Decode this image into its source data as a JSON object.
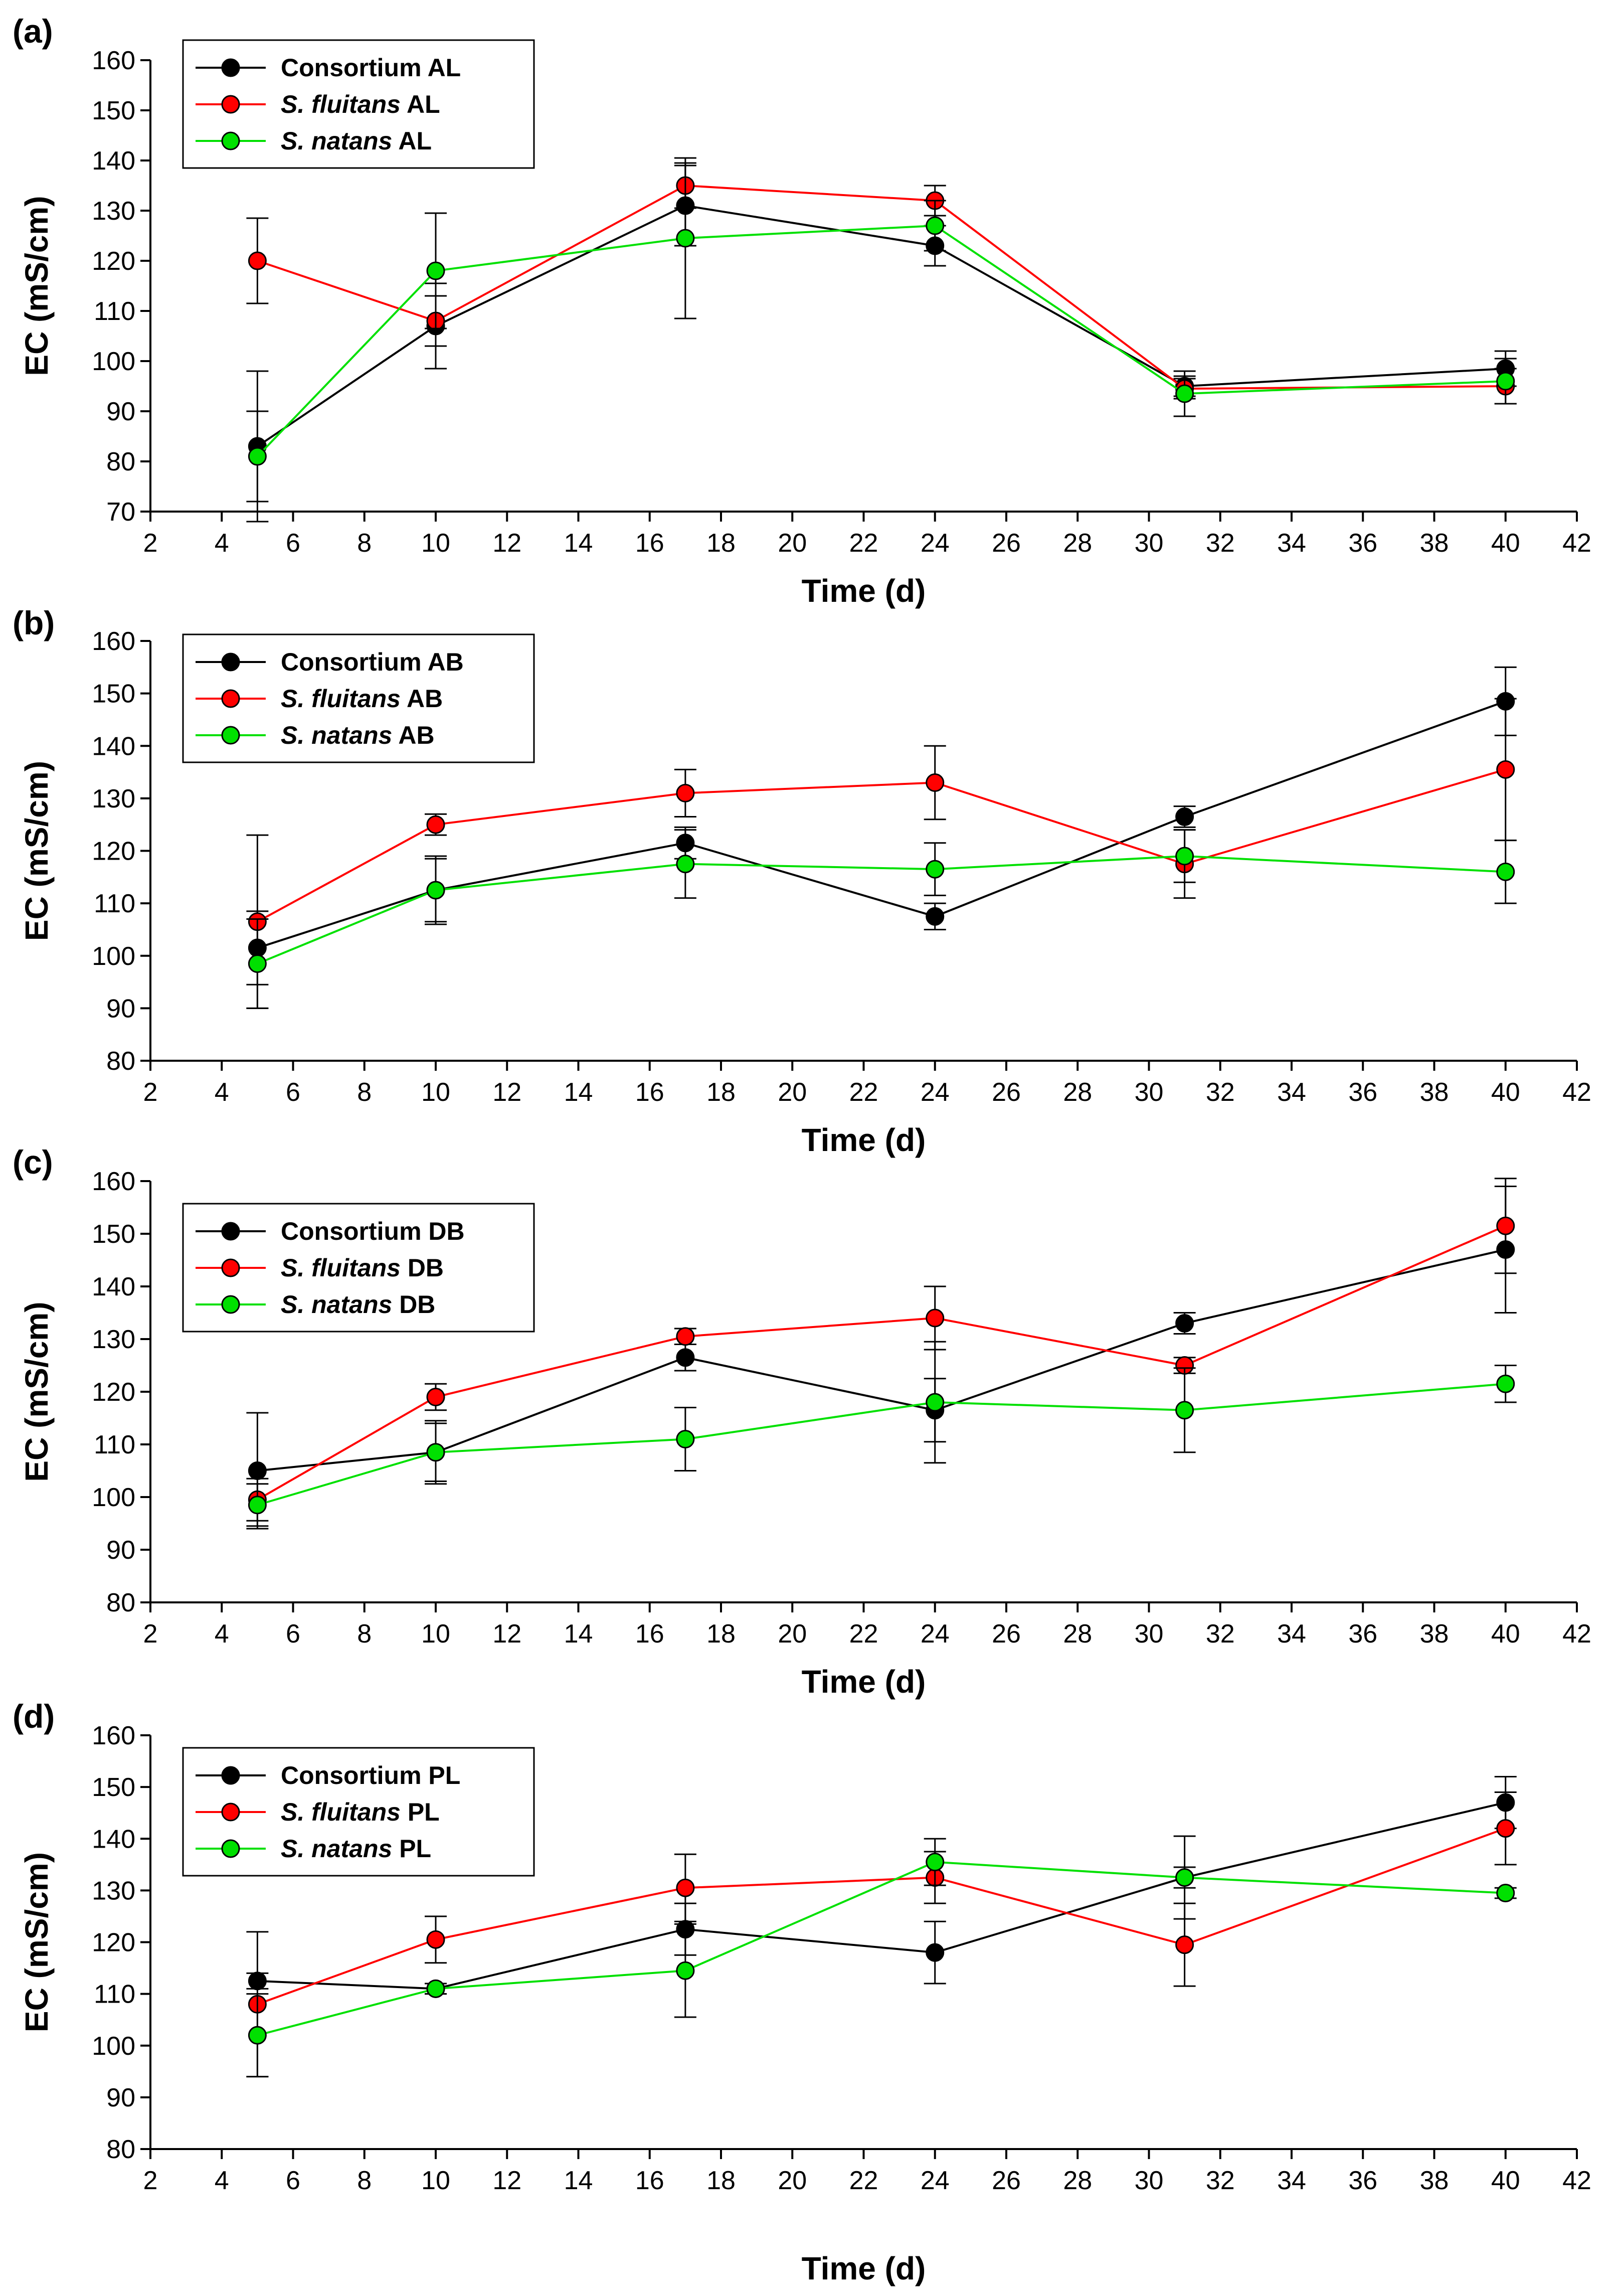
{
  "chart_data": [
    {
      "type": "line",
      "panel_label": "(a)",
      "xlabel": "Time (d)",
      "ylabel": "EC (mS/cm)",
      "xlim": [
        2,
        42
      ],
      "ylim": [
        70,
        160
      ],
      "x_ticks": [
        2,
        4,
        6,
        8,
        10,
        12,
        14,
        16,
        18,
        20,
        22,
        24,
        26,
        28,
        30,
        32,
        34,
        36,
        38,
        40,
        42
      ],
      "y_ticks": [
        70,
        80,
        90,
        100,
        110,
        120,
        130,
        140,
        150,
        160
      ],
      "legend_position": "top-left",
      "series": [
        {
          "name_italic": "",
          "name_plain": "Consortium AL",
          "color": "#000000",
          "x": [
            5,
            10,
            17,
            24,
            31,
            40
          ],
          "values": [
            83,
            107,
            131,
            123,
            95,
            98.5
          ],
          "errors": [
            15,
            8.5,
            8,
            4,
            2,
            3.5
          ]
        },
        {
          "name_italic": "S. fluitans",
          "name_plain": " AL",
          "color": "#ff0000",
          "x": [
            5,
            10,
            17,
            24,
            31,
            40
          ],
          "values": [
            120,
            108,
            135,
            132,
            94.5,
            95
          ],
          "errors": [
            8.5,
            5,
            4.5,
            3,
            2,
            3.5
          ]
        },
        {
          "name_italic": "S. natans",
          "name_plain": " AL",
          "color": "#00e000",
          "x": [
            5,
            10,
            17,
            24,
            31,
            40
          ],
          "values": [
            81,
            118,
            124.5,
            127,
            93.5,
            96
          ],
          "errors": [
            9,
            11.5,
            16,
            5,
            4.5,
            4.5
          ]
        }
      ]
    },
    {
      "type": "line",
      "panel_label": "(b)",
      "xlabel": "Time (d)",
      "ylabel": "EC (mS/cm)",
      "xlim": [
        2,
        42
      ],
      "ylim": [
        80,
        160
      ],
      "x_ticks": [
        2,
        4,
        6,
        8,
        10,
        12,
        14,
        16,
        18,
        20,
        22,
        24,
        26,
        28,
        30,
        32,
        34,
        36,
        38,
        40,
        42
      ],
      "y_ticks": [
        80,
        90,
        100,
        110,
        120,
        130,
        140,
        150,
        160
      ],
      "legend_position": "top-left",
      "series": [
        {
          "name_italic": "",
          "name_plain": "Consortium AB",
          "color": "#000000",
          "x": [
            5,
            10,
            17,
            24,
            31,
            40
          ],
          "values": [
            101.5,
            112.5,
            121.5,
            107.5,
            126.5,
            148.5
          ],
          "errors": [
            7,
            6,
            3,
            2.5,
            2,
            6.5
          ]
        },
        {
          "name_italic": "S. fluitans",
          "name_plain": " AB",
          "color": "#ff0000",
          "x": [
            5,
            10,
            17,
            24,
            31,
            40
          ],
          "values": [
            106.5,
            125,
            131,
            133,
            117.5,
            135.5
          ],
          "errors": [
            16.5,
            2,
            4.5,
            7,
            6.5,
            13.5
          ]
        },
        {
          "name_italic": "S. natans",
          "name_plain": " AB",
          "color": "#00e000",
          "x": [
            5,
            10,
            17,
            24,
            31,
            40
          ],
          "values": [
            98.5,
            112.5,
            117.5,
            116.5,
            119,
            116
          ],
          "errors": [
            8.5,
            6.5,
            6.5,
            5,
            5,
            6
          ]
        }
      ]
    },
    {
      "type": "line",
      "panel_label": "(c)",
      "xlabel": "Time (d)",
      "ylabel": "EC (mS/cm)",
      "xlim": [
        2,
        42
      ],
      "ylim": [
        80,
        160
      ],
      "x_ticks": [
        2,
        4,
        6,
        8,
        10,
        12,
        14,
        16,
        18,
        20,
        22,
        24,
        26,
        28,
        30,
        32,
        34,
        36,
        38,
        40,
        42
      ],
      "y_ticks": [
        80,
        90,
        100,
        110,
        120,
        130,
        140,
        150,
        160
      ],
      "legend_position": "top-left",
      "series": [
        {
          "name_italic": "",
          "name_plain": "Consortium DB",
          "color": "#000000",
          "x": [
            5,
            10,
            17,
            24,
            31,
            40
          ],
          "values": [
            105,
            108.5,
            126.5,
            116.5,
            133,
            147
          ],
          "errors": [
            11,
            5.5,
            2.5,
            6,
            2,
            12
          ]
        },
        {
          "name_italic": "S. fluitans",
          "name_plain": " DB",
          "color": "#ff0000",
          "x": [
            5,
            10,
            17,
            24,
            31,
            40
          ],
          "values": [
            99.5,
            119,
            130.5,
            134,
            125,
            151.5
          ],
          "errors": [
            4,
            2.5,
            1.5,
            6,
            1.5,
            9
          ]
        },
        {
          "name_italic": "S. natans",
          "name_plain": " DB",
          "color": "#00e000",
          "x": [
            5,
            10,
            17,
            24,
            31,
            40
          ],
          "values": [
            98.5,
            108.5,
            111,
            118,
            116.5,
            121.5
          ],
          "errors": [
            4,
            6,
            6,
            11.5,
            8,
            3.5
          ]
        }
      ]
    },
    {
      "type": "line",
      "panel_label": "(d)",
      "xlabel": "Time (d)",
      "ylabel": "EC (mS/cm)",
      "xlim": [
        2,
        42
      ],
      "ylim": [
        80,
        160
      ],
      "x_ticks": [
        2,
        4,
        6,
        8,
        10,
        12,
        14,
        16,
        18,
        20,
        22,
        24,
        26,
        28,
        30,
        32,
        34,
        36,
        38,
        40,
        42
      ],
      "y_ticks": [
        80,
        90,
        100,
        110,
        120,
        130,
        140,
        150,
        160
      ],
      "legend_position": "top-left",
      "series": [
        {
          "name_italic": "",
          "name_plain": "Consortium PL",
          "color": "#000000",
          "x": [
            5,
            10,
            17,
            24,
            31,
            40
          ],
          "values": [
            112.5,
            111,
            122.5,
            118,
            132.5,
            147
          ],
          "errors": [
            1.5,
            1,
            5,
            6,
            8,
            5
          ]
        },
        {
          "name_italic": "S. fluitans",
          "name_plain": " PL",
          "color": "#ff0000",
          "x": [
            5,
            10,
            17,
            24,
            31,
            40
          ],
          "values": [
            108,
            120.5,
            130.5,
            132.5,
            119.5,
            142
          ],
          "errors": [
            14,
            4.5,
            6.5,
            5,
            8,
            7
          ]
        },
        {
          "name_italic": "S. natans",
          "name_plain": " PL",
          "color": "#00e000",
          "x": [
            5,
            10,
            17,
            24,
            31,
            40
          ],
          "values": [
            102,
            111,
            114.5,
            135.5,
            132.5,
            129.5
          ],
          "errors": [
            8,
            1,
            9,
            4.5,
            2,
            1
          ]
        }
      ]
    }
  ]
}
